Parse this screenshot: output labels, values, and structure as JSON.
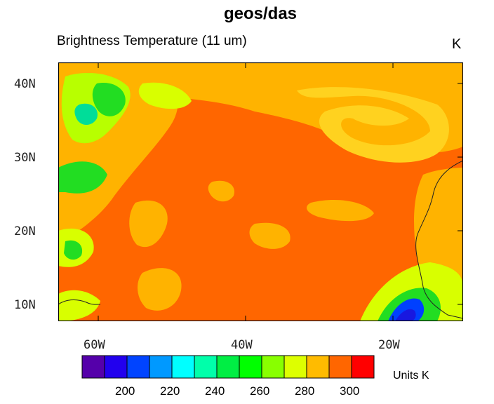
{
  "title": "geos/das",
  "subtitle": "Brightness Temperature (11 um)",
  "unit_corner": "K",
  "units_label": "Units K",
  "map": {
    "lat_labels": [
      "40N",
      "30N",
      "20N",
      "10N"
    ],
    "lon_labels": [
      "60W",
      "40W",
      "20W"
    ],
    "lat_range": [
      8,
      43
    ],
    "lon_range": [
      -66,
      -10
    ],
    "palette": {
      "orange_red": "#ff6600",
      "orange": "#ffb300",
      "yellow_green": "#d8ff00",
      "green": "#22dd22",
      "teal": "#00dd99",
      "blue": "#0040ff",
      "dark_blue": "#1818e0"
    }
  },
  "colorbar": {
    "colors": [
      "#5500aa",
      "#2200ee",
      "#0044ff",
      "#0099ff",
      "#00ffff",
      "#00ffaa",
      "#00ee44",
      "#00ff00",
      "#88ff00",
      "#ddff00",
      "#ffbb00",
      "#ff6600",
      "#ff0000"
    ],
    "tick_labels": [
      "200",
      "220",
      "240",
      "260",
      "280",
      "300"
    ]
  }
}
